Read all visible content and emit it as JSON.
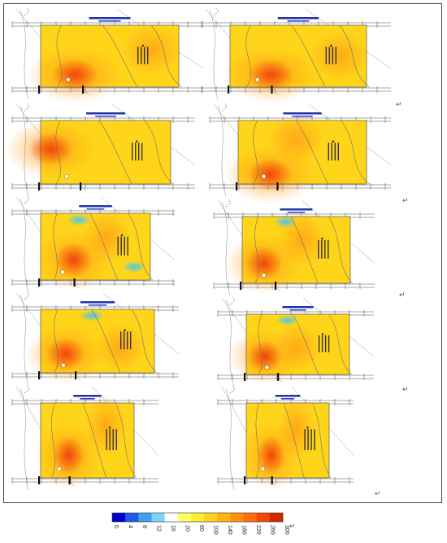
{
  "panels": [
    {
      "id": "p1",
      "title": "",
      "subtitle": "",
      "corner_mark": "↵"
    },
    {
      "id": "p2",
      "title": "",
      "subtitle": "",
      "corner_mark": "↵"
    },
    {
      "id": "p3",
      "title": "",
      "subtitle": "",
      "corner_mark": "↵"
    },
    {
      "id": "p4",
      "title": "",
      "subtitle": "",
      "corner_mark": "↵"
    },
    {
      "id": "p5",
      "title": "",
      "subtitle": "",
      "corner_mark": "↵"
    },
    {
      "id": "p6",
      "title": "",
      "subtitle": "",
      "corner_mark": "↵"
    },
    {
      "id": "p7",
      "title": "",
      "subtitle": "",
      "corner_mark": "↵"
    },
    {
      "id": "p8",
      "title": "",
      "subtitle": "",
      "corner_mark": "↵"
    },
    {
      "id": "p9",
      "title": "",
      "subtitle": "",
      "corner_mark": "↵"
    },
    {
      "id": "p10",
      "title": "",
      "subtitle": "",
      "corner_mark": "↵"
    }
  ],
  "legend": {
    "ticks": [
      "0",
      "4",
      "8",
      "12",
      "16",
      "20",
      "60",
      "100",
      "140",
      "180",
      "220",
      "260",
      "300"
    ],
    "colors": [
      "#0000c8",
      "#1e5ae6",
      "#3fa0f0",
      "#7fd4f5",
      "#ffffff",
      "#ffff66",
      "#ffee33",
      "#ffd21e",
      "#ffb414",
      "#ff910f",
      "#ff6e0a",
      "#f04b05",
      "#d22800"
    ],
    "end_mark": "↵"
  },
  "colors": {
    "base": "#ffd51a",
    "warm": "#ff9a14",
    "hot": "#f03c0a",
    "cold": "#44c8f0",
    "road": "#8a8a8a",
    "frame": "#444444"
  }
}
